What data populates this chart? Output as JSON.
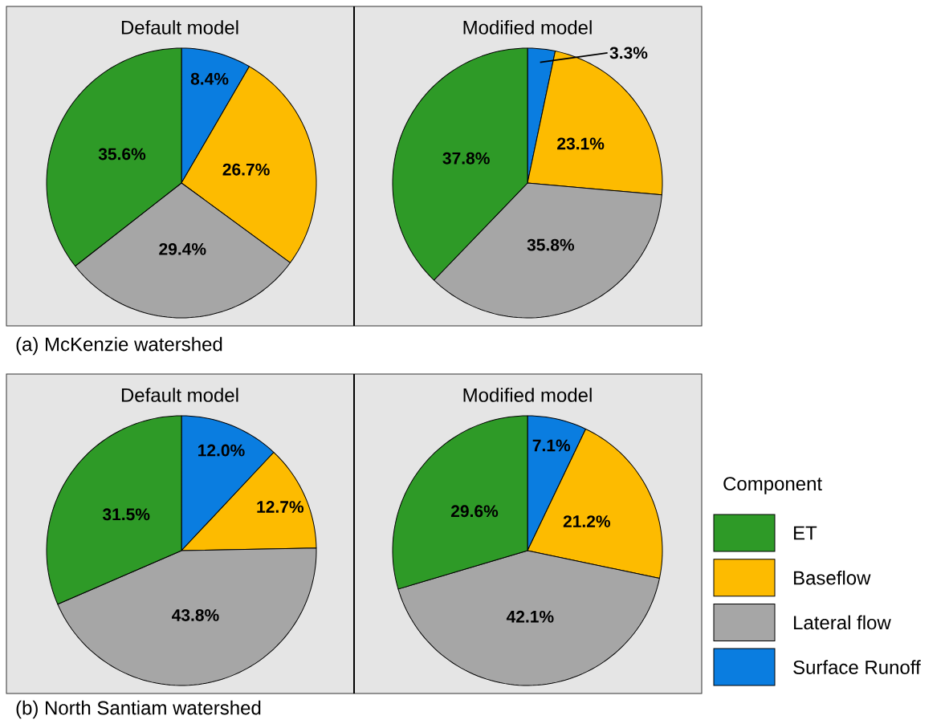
{
  "chart_data": [
    {
      "type": "pie",
      "title": "Default model",
      "values": [
        8.4,
        26.7,
        29.4,
        35.6
      ],
      "value_labels": [
        "8.4%",
        "26.7%",
        "29.4%",
        "35.6%"
      ],
      "colors": [
        "#0a7de0",
        "#fdbb00",
        "#a6a6a6",
        "#2e9a27"
      ],
      "annotations": [
        "(a) McKenzie watershed"
      ]
    },
    {
      "type": "pie",
      "title": "Modified model",
      "values": [
        3.3,
        23.1,
        35.8,
        37.8
      ],
      "value_labels": [
        "3.3%",
        "23.1%",
        "35.8%",
        "37.8%"
      ],
      "colors": [
        "#0a7de0",
        "#fdbb00",
        "#a6a6a6",
        "#2e9a27"
      ]
    },
    {
      "type": "pie",
      "title": "Default model",
      "values": [
        12.0,
        12.7,
        43.8,
        31.5
      ],
      "value_labels": [
        "12.0%",
        "12.7%",
        "43.8%",
        "31.5%"
      ],
      "colors": [
        "#0a7de0",
        "#fdbb00",
        "#a6a6a6",
        "#2e9a27"
      ],
      "annotations": [
        "(b) North Santiam watershed"
      ]
    },
    {
      "type": "pie",
      "title": "Modified model",
      "categories": [
        "Surface Runoff",
        "Baseflow",
        "Lateral flow",
        "ET"
      ],
      "values": [
        7.1,
        21.2,
        42.1,
        29.6
      ],
      "value_labels": [
        "7.1%",
        "21.2%",
        "42.1%",
        "29.6%"
      ],
      "colors": [
        "#0a7de0",
        "#fdbb00",
        "#a6a6a6",
        "#2e9a27"
      ],
      "legend": "right",
      "legend_title": "Component"
    }
  ]
}
